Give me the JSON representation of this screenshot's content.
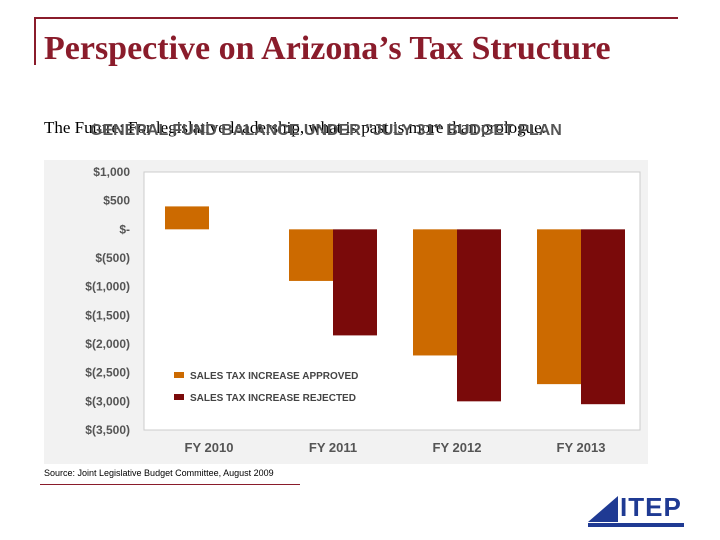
{
  "slide": {
    "title": "Perspective on Arizona’s Tax Structure",
    "subtitle": "The Future: For legislative leadership, what is past is more than prologue."
  },
  "chart_data": {
    "type": "bar",
    "title": "GENERAL FUND BALANCE UNDER \"JULY 31\" BUDGET PLAN",
    "categories": [
      "FY 2010",
      "FY 2011",
      "FY 2012",
      "FY 2013"
    ],
    "series": [
      {
        "name": "SALES TAX INCREASE APPROVED",
        "values": [
          400,
          -900,
          -2200,
          -2700
        ],
        "color": "#cc6a00"
      },
      {
        "name": "SALES TAX INCREASE REJECTED",
        "values": [
          null,
          -1850,
          -3000,
          -3050
        ],
        "color": "#7a0a0a"
      }
    ],
    "yticks": [
      1000,
      500,
      0,
      -500,
      -1000,
      -1500,
      -2000,
      -2500,
      -3000,
      -3500
    ],
    "ytick_labels": [
      "$1,000",
      "$500",
      "$-",
      "$(500)",
      "$(1,000)",
      "$(1,500)",
      "$(2,000)",
      "$(2,500)",
      "$(3,000)",
      "$(3,500)"
    ],
    "ylim": [
      -3500,
      1000
    ],
    "legend_position": "lower-left"
  },
  "source": "Source: Joint Legislative Budget Committee, August 2009",
  "logo": {
    "text": "ITEP"
  }
}
